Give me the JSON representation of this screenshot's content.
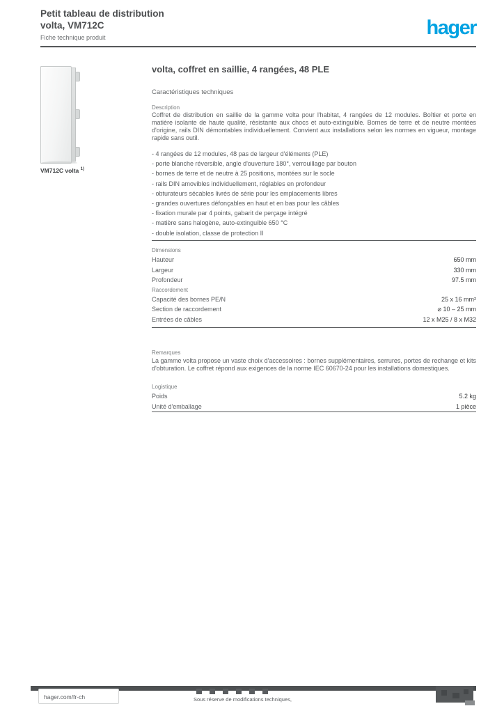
{
  "page": {
    "header": {
      "title_line1": "Petit tableau de distribution",
      "title_line2": "volta, VM712C",
      "doc_type": "Fiche technique produit",
      "logo": "hager"
    },
    "product": {
      "caption": "VM712C volta",
      "caption_note": "1)"
    },
    "main": {
      "title": "volta, coffret en saillie, 4 rangées, 48 PLE",
      "subtitle": "Caractéristiques techniques",
      "description": {
        "label": "Description",
        "text": "Coffret de distribution en saillie de la gamme volta pour l'habitat, 4 rangées de 12 modules. Boîtier et porte en matière isolante de haute qualité, résistante aux chocs et auto-extinguible. Bornes de terre et de neutre montées d'origine, rails DIN démontables individuellement. Convient aux installations selon les normes en vigueur, montage rapide sans outil."
      },
      "features": [
        "- 4 rangées de 12 modules, 48 pas de largeur d'éléments (PLE)",
        "- porte blanche réversible, angle d'ouverture 180°, verrouillage par bouton",
        "- bornes de terre et de neutre à 25 positions, montées sur le socle",
        "- rails DIN amovibles individuellement, réglables en profondeur",
        "- obturateurs sécables livrés de série pour les emplacements libres",
        "- grandes ouvertures défonçables en haut et en bas pour les câbles",
        "- fixation murale par 4 points, gabarit de perçage intégré",
        "- matière sans halogène, auto-extinguible 650 °C",
        "- double isolation, classe de protection II"
      ],
      "specs": {
        "groups": [
          {
            "label": "Dimensions",
            "rows": [
              [
                "Hauteur",
                "650 mm"
              ],
              [
                "Largeur",
                "330 mm"
              ],
              [
                "Profondeur",
                "97.5 mm"
              ]
            ]
          },
          {
            "label": "Raccordement",
            "rows": [
              [
                "Capacité des bornes PE/N",
                "25 x 16 mm²"
              ],
              [
                "Section de raccordement",
                "⌀ 10 – 25 mm"
              ],
              [
                "Entrées de câbles",
                "12 x M25 / 8 x M32"
              ]
            ]
          }
        ]
      },
      "notes": {
        "label": "Remarques",
        "text": "La gamme volta propose un vaste choix d'accessoires : bornes supplémentaires, serrures, portes de rechange et kits d'obturation. Le coffret répond aux exigences de la norme IEC 60670-24 pour les installations domestiques."
      },
      "logistics": {
        "label": "Logistique",
        "rows": [
          [
            "Poids",
            "5.2 kg"
          ],
          [
            "Unité d'emballage",
            "1 pièce"
          ]
        ]
      }
    },
    "footer": {
      "link": "hager.com/fr-ch",
      "note": "Sous réserve de modifications techniques,"
    }
  }
}
